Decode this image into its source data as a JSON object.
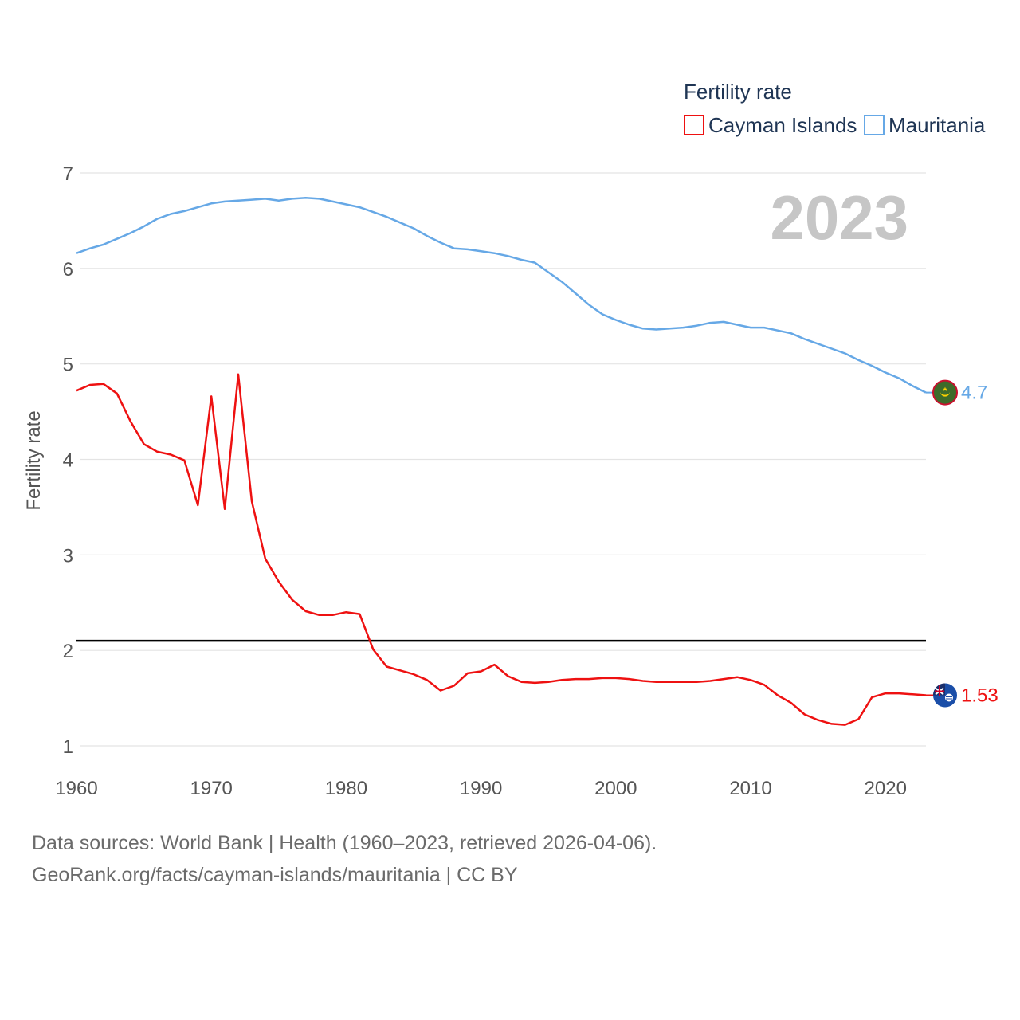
{
  "chart_data": {
    "type": "line",
    "legend_title": "Fertility rate",
    "ylabel": "Fertility rate",
    "year_label": "2023",
    "x": [
      1960,
      1961,
      1962,
      1963,
      1964,
      1965,
      1966,
      1967,
      1968,
      1969,
      1970,
      1971,
      1972,
      1973,
      1974,
      1975,
      1976,
      1977,
      1978,
      1979,
      1980,
      1981,
      1982,
      1983,
      1984,
      1985,
      1986,
      1987,
      1988,
      1989,
      1990,
      1991,
      1992,
      1993,
      1994,
      1995,
      1996,
      1997,
      1998,
      1999,
      2000,
      2001,
      2002,
      2003,
      2004,
      2005,
      2006,
      2007,
      2008,
      2009,
      2010,
      2011,
      2012,
      2013,
      2014,
      2015,
      2016,
      2017,
      2018,
      2019,
      2020,
      2021,
      2022,
      2023
    ],
    "xlim": [
      1960,
      2023
    ],
    "ylim": [
      0.7,
      7.25
    ],
    "x_ticks": [
      "1960",
      "1970",
      "1980",
      "1990",
      "2000",
      "2010",
      "2020"
    ],
    "y_ticks": [
      "1",
      "2",
      "3",
      "4",
      "5",
      "6",
      "7"
    ],
    "reference_line": 2.1,
    "series": [
      {
        "name": "Cayman Islands",
        "color": "#ee1111",
        "end_label": "1.53",
        "values": [
          4.72,
          4.78,
          4.79,
          4.69,
          4.4,
          4.16,
          4.08,
          4.05,
          3.99,
          3.52,
          4.66,
          3.48,
          4.89,
          3.56,
          2.96,
          2.72,
          2.53,
          2.41,
          2.37,
          2.37,
          2.4,
          2.38,
          2.01,
          1.83,
          1.79,
          1.75,
          1.69,
          1.58,
          1.63,
          1.76,
          1.78,
          1.85,
          1.73,
          1.67,
          1.66,
          1.67,
          1.69,
          1.7,
          1.7,
          1.71,
          1.71,
          1.7,
          1.68,
          1.67,
          1.67,
          1.67,
          1.67,
          1.68,
          1.7,
          1.72,
          1.69,
          1.64,
          1.53,
          1.45,
          1.33,
          1.27,
          1.23,
          1.22,
          1.28,
          1.51,
          1.55,
          1.55,
          1.54,
          1.53
        ]
      },
      {
        "name": "Mauritania",
        "color": "#66a8e6",
        "end_label": "4.7",
        "values": [
          6.16,
          6.21,
          6.25,
          6.31,
          6.37,
          6.44,
          6.52,
          6.57,
          6.6,
          6.64,
          6.68,
          6.7,
          6.71,
          6.72,
          6.73,
          6.71,
          6.73,
          6.74,
          6.73,
          6.7,
          6.67,
          6.64,
          6.59,
          6.54,
          6.48,
          6.42,
          6.34,
          6.27,
          6.21,
          6.2,
          6.18,
          6.16,
          6.13,
          6.09,
          6.06,
          5.96,
          5.86,
          5.74,
          5.62,
          5.52,
          5.46,
          5.41,
          5.37,
          5.36,
          5.37,
          5.38,
          5.4,
          5.43,
          5.44,
          5.41,
          5.38,
          5.38,
          5.35,
          5.32,
          5.26,
          5.21,
          5.16,
          5.11,
          5.04,
          4.98,
          4.91,
          4.85,
          4.77,
          4.7
        ]
      }
    ]
  },
  "footer": {
    "line1": "Data sources: World Bank | Health (1960–2023, retrieved 2026-04-06).",
    "line2": "GeoRank.org/facts/cayman-islands/mauritania | CC BY"
  },
  "icons": {
    "mauritania_flag": "mauritania-flag-icon",
    "cayman_flag": "cayman-islands-flag-icon"
  }
}
